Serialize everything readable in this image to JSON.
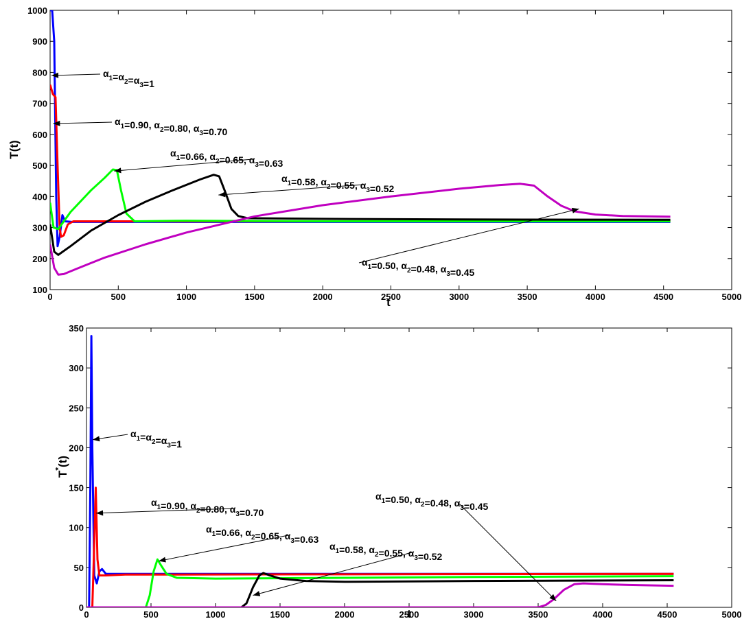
{
  "chart_data": [
    {
      "type": "line",
      "xlabel": "t",
      "ylabel": "T(t)",
      "xlim": [
        0,
        5000
      ],
      "ylim": [
        100,
        1000
      ],
      "xticks": [
        0,
        500,
        1000,
        1500,
        2000,
        2500,
        3000,
        3500,
        4000,
        4500,
        5000
      ],
      "yticks": [
        100,
        200,
        300,
        400,
        500,
        600,
        700,
        800,
        900,
        1000
      ],
      "grid": false,
      "legend": "none",
      "series": [
        {
          "color": "#0000ff",
          "points": [
            [
              0,
              1000
            ],
            [
              15,
              1000
            ],
            [
              30,
              900
            ],
            [
              45,
              400
            ],
            [
              55,
              240
            ],
            [
              70,
              270
            ],
            [
              90,
              340
            ],
            [
              110,
              320
            ],
            [
              160,
              318
            ],
            [
              500,
              318
            ],
            [
              4550,
              318
            ]
          ]
        },
        {
          "color": "#ff0000",
          "points": [
            [
              0,
              760
            ],
            [
              20,
              730
            ],
            [
              40,
              720
            ],
            [
              55,
              500
            ],
            [
              70,
              300
            ],
            [
              80,
              270
            ],
            [
              100,
              275
            ],
            [
              130,
              310
            ],
            [
              170,
              320
            ],
            [
              300,
              320
            ],
            [
              4550,
              320
            ]
          ]
        },
        {
          "color": "#00ff00",
          "points": [
            [
              0,
              380
            ],
            [
              25,
              300
            ],
            [
              60,
              295
            ],
            [
              150,
              350
            ],
            [
              300,
              420
            ],
            [
              400,
              460
            ],
            [
              460,
              487
            ],
            [
              490,
              485
            ],
            [
              520,
              420
            ],
            [
              560,
              345
            ],
            [
              620,
              320
            ],
            [
              1000,
              322
            ],
            [
              2000,
              320
            ],
            [
              4550,
              320
            ]
          ]
        },
        {
          "color": "#000000",
          "points": [
            [
              0,
              310
            ],
            [
              30,
              222
            ],
            [
              60,
              212
            ],
            [
              150,
              240
            ],
            [
              300,
              290
            ],
            [
              500,
              340
            ],
            [
              700,
              383
            ],
            [
              900,
              420
            ],
            [
              1100,
              455
            ],
            [
              1200,
              470
            ],
            [
              1240,
              465
            ],
            [
              1280,
              420
            ],
            [
              1330,
              360
            ],
            [
              1380,
              337
            ],
            [
              1450,
              330
            ],
            [
              2000,
              328
            ],
            [
              3000,
              326
            ],
            [
              4550,
              325
            ]
          ]
        },
        {
          "color": "#c000c0",
          "points": [
            [
              0,
              245
            ],
            [
              30,
              170
            ],
            [
              60,
              148
            ],
            [
              100,
              150
            ],
            [
              200,
              168
            ],
            [
              400,
              203
            ],
            [
              700,
              246
            ],
            [
              1000,
              284
            ],
            [
              1500,
              336
            ],
            [
              2000,
              372
            ],
            [
              2500,
              400
            ],
            [
              3000,
              425
            ],
            [
              3300,
              437
            ],
            [
              3450,
              441
            ],
            [
              3550,
              435
            ],
            [
              3650,
              400
            ],
            [
              3750,
              370
            ],
            [
              3850,
              352
            ],
            [
              4000,
              342
            ],
            [
              4200,
              337
            ],
            [
              4550,
              335
            ]
          ]
        }
      ],
      "annotations": [
        {
          "parts": [
            [
              "α",
              "1"
            ],
            [
              "=α",
              "2"
            ],
            [
              "=α",
              "3"
            ],
            [
              "=1",
              ""
            ]
          ],
          "points_to": [
            10,
            790
          ]
        },
        {
          "parts": [
            [
              "α",
              "1"
            ],
            [
              "=0.90, α",
              "2"
            ],
            [
              "=0.80, α",
              "3"
            ],
            [
              "=0.70",
              ""
            ]
          ],
          "points_to": [
            22,
            635
          ]
        },
        {
          "parts": [
            [
              "α",
              "1"
            ],
            [
              "=0.66, α",
              "2"
            ],
            [
              "=0.65, α",
              "3"
            ],
            [
              "=0.63",
              ""
            ]
          ],
          "points_to": [
            470,
            482
          ]
        },
        {
          "parts": [
            [
              "α",
              "1"
            ],
            [
              "=0.58, α",
              "2"
            ],
            [
              "=0.55, α",
              "3"
            ],
            [
              "=0.52",
              ""
            ]
          ],
          "points_to": [
            1235,
            405
          ]
        },
        {
          "parts": [
            [
              "α",
              "1"
            ],
            [
              "=0.50, α",
              "2"
            ],
            [
              "=0.48, α",
              "3"
            ],
            [
              "=0.45",
              ""
            ]
          ],
          "points_to": [
            3880,
            360
          ]
        }
      ]
    },
    {
      "type": "line",
      "xlabel": "t",
      "ylabel": "T*(t)",
      "xlim": [
        0,
        5000
      ],
      "ylim": [
        0,
        350
      ],
      "xticks": [
        0,
        500,
        1000,
        1500,
        2000,
        2500,
        3000,
        3500,
        4000,
        4500,
        5000
      ],
      "yticks": [
        0,
        50,
        100,
        150,
        200,
        250,
        300,
        350
      ],
      "grid": false,
      "legend": "none",
      "series": [
        {
          "color": "#0000ff",
          "points": [
            [
              0,
              0
            ],
            [
              20,
              0
            ],
            [
              30,
              150
            ],
            [
              38,
              340
            ],
            [
              45,
              200
            ],
            [
              60,
              40
            ],
            [
              80,
              30
            ],
            [
              100,
              45
            ],
            [
              120,
              48
            ],
            [
              150,
              42
            ],
            [
              250,
              42
            ],
            [
              4550,
              42
            ]
          ]
        },
        {
          "color": "#ff0000",
          "points": [
            [
              0,
              0
            ],
            [
              45,
              0
            ],
            [
              60,
              80
            ],
            [
              72,
              150
            ],
            [
              85,
              60
            ],
            [
              100,
              40
            ],
            [
              150,
              40
            ],
            [
              300,
              41
            ],
            [
              4550,
              42
            ]
          ]
        },
        {
          "color": "#00ff00",
          "points": [
            [
              0,
              0
            ],
            [
              460,
              0
            ],
            [
              490,
              15
            ],
            [
              520,
              45
            ],
            [
              550,
              60
            ],
            [
              580,
              52
            ],
            [
              620,
              42
            ],
            [
              700,
              37
            ],
            [
              1000,
              36
            ],
            [
              2000,
              37
            ],
            [
              3000,
              38
            ],
            [
              4550,
              39
            ]
          ]
        },
        {
          "color": "#000000",
          "points": [
            [
              0,
              0
            ],
            [
              1200,
              0
            ],
            [
              1240,
              5
            ],
            [
              1290,
              25
            ],
            [
              1340,
              40
            ],
            [
              1370,
              43
            ],
            [
              1420,
              40
            ],
            [
              1500,
              36
            ],
            [
              1700,
              33
            ],
            [
              2000,
              32
            ],
            [
              3000,
              33
            ],
            [
              4550,
              34
            ]
          ]
        },
        {
          "color": "#c000c0",
          "points": [
            [
              0,
              0
            ],
            [
              3500,
              0
            ],
            [
              3560,
              3
            ],
            [
              3620,
              10
            ],
            [
              3700,
              22
            ],
            [
              3780,
              29
            ],
            [
              3850,
              30
            ],
            [
              4000,
              29
            ],
            [
              4200,
              28
            ],
            [
              4550,
              27
            ]
          ]
        }
      ],
      "annotations": [
        {
          "parts": [
            [
              "α",
              "1"
            ],
            [
              "=α",
              "2"
            ],
            [
              "=α",
              "3"
            ],
            [
              "=1",
              ""
            ]
          ],
          "points_to": [
            48,
            210
          ]
        },
        {
          "parts": [
            [
              "α",
              "1"
            ],
            [
              "=0.90, α",
              "2"
            ],
            [
              "=0.80, α",
              "3"
            ],
            [
              "=0.70",
              ""
            ]
          ],
          "points_to": [
            75,
            118
          ]
        },
        {
          "parts": [
            [
              "α",
              "1"
            ],
            [
              "=0.66, α",
              "2"
            ],
            [
              "=0.65, α",
              "3"
            ],
            [
              "=0.63",
              ""
            ]
          ],
          "points_to": [
            560,
            58
          ]
        },
        {
          "parts": [
            [
              "α",
              "1"
            ],
            [
              "=0.58, α",
              "2"
            ],
            [
              "=0.55, α",
              "3"
            ],
            [
              "=0.52",
              ""
            ]
          ],
          "points_to": [
            1290,
            15
          ]
        },
        {
          "parts": [
            [
              "α",
              "1"
            ],
            [
              "=0.50, α",
              "2"
            ],
            [
              "=0.48, α",
              "3"
            ],
            [
              "=0.45",
              ""
            ]
          ],
          "points_to": [
            3640,
            8
          ]
        }
      ]
    }
  ]
}
